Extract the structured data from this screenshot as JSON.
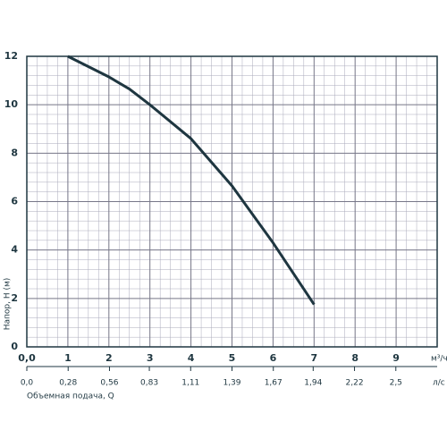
{
  "chart_data": {
    "type": "line",
    "ylabel": "Напор, H (м)",
    "xlabel": "Объемная подача, Q",
    "xunit": "м³/ч",
    "x2unit": "л/с",
    "x": [
      1,
      2,
      2.5,
      3,
      4,
      5,
      6,
      7
    ],
    "series": [
      {
        "color": "#1e3640",
        "values": [
          12,
          11.15,
          10.65,
          10,
          8.6,
          6.65,
          4.3,
          1.75
        ]
      }
    ],
    "xlim": [
      0,
      10
    ],
    "xticks": [
      {
        "value": 0,
        "label": "0,0"
      },
      1,
      2,
      3,
      4,
      5,
      6,
      7,
      8,
      9
    ],
    "x2lim": [
      0,
      2.78
    ],
    "x2ticks": [
      {
        "value": 0,
        "label": "0,0"
      },
      {
        "value": 0.28,
        "label": "0,28"
      },
      {
        "value": 0.56,
        "label": "0,56"
      },
      {
        "value": 0.83,
        "label": "0,83"
      },
      {
        "value": 1.11,
        "label": "1,11"
      },
      {
        "value": 1.39,
        "label": "1,39"
      },
      {
        "value": 1.67,
        "label": "1,67"
      },
      {
        "value": 1.94,
        "label": "1,94"
      },
      {
        "value": 2.22,
        "label": "2,22"
      },
      {
        "value": 2.5,
        "label": "2,5"
      }
    ],
    "ylim": [
      0,
      12
    ],
    "yticks": [
      0,
      2,
      4,
      6,
      8,
      10,
      12
    ],
    "grid": true
  }
}
